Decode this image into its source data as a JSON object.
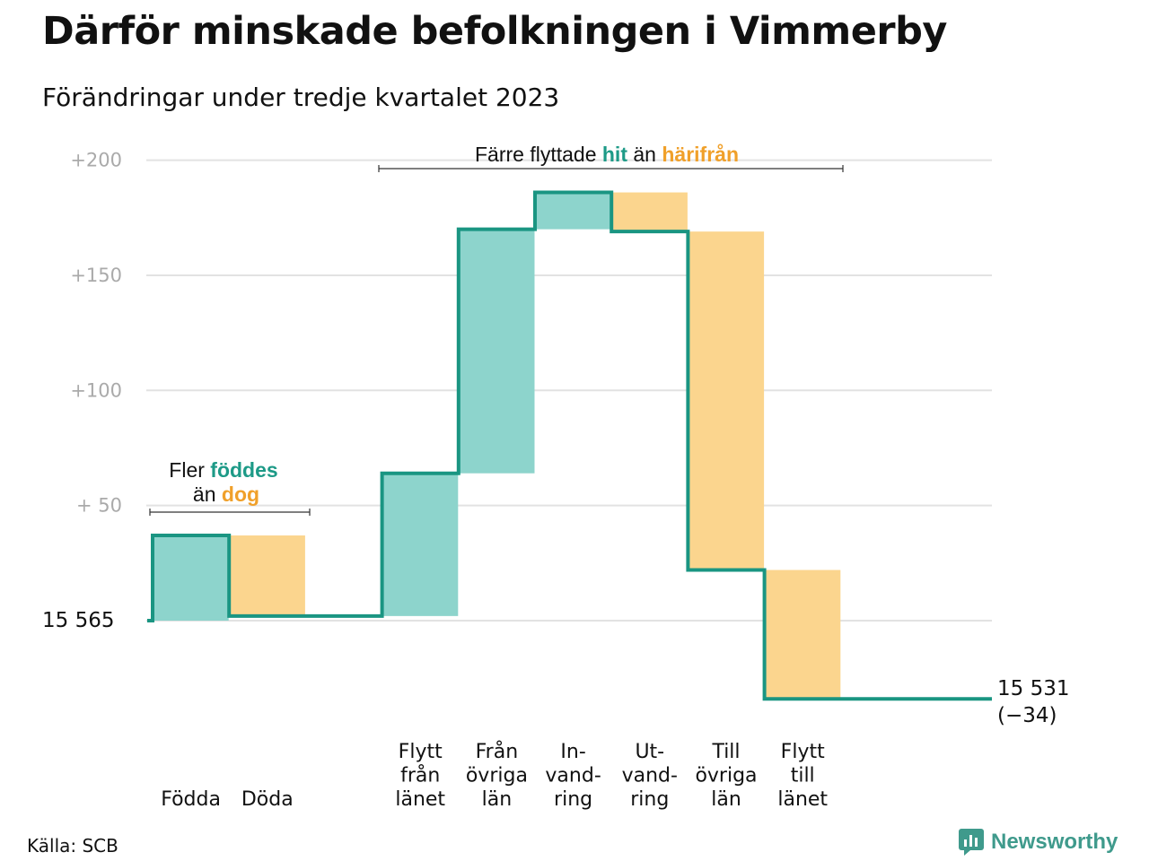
{
  "title": "Därför minskade befolkningen i Vimmerby",
  "subtitle": "Förändringar under tredje kvartalet 2023",
  "source": "Källa: SCB",
  "logo_text": "Newsworthy",
  "colors": {
    "positive": "#8dd4cc",
    "negative": "#fbd58e",
    "line": "#1a9582",
    "accent_green": "#1d9a87",
    "accent_orange": "#f0a02a",
    "grid": "#e2e2e2"
  },
  "annotations": {
    "births": {
      "line1_prefix": "Fler ",
      "line1_highlight": "föddes",
      "line2_prefix": "än ",
      "line2_highlight": "dog"
    },
    "migration": {
      "prefix": "Färre flyttade ",
      "highlight1": "hit",
      "middle": " än ",
      "highlight2": "härifrån"
    }
  },
  "chart_data": {
    "type": "waterfall",
    "title": "Därför minskade befolkningen i Vimmerby",
    "subtitle": "Förändringar under tredje kvartalet 2023",
    "start_value": 15565,
    "start_label": "15  565",
    "end_value": 15531,
    "end_label": "15 531",
    "end_change_label": "(−34)",
    "ylim": [
      -35,
      200
    ],
    "yticks": [
      {
        "value": 200,
        "label": "+200"
      },
      {
        "value": 150,
        "label": "+150"
      },
      {
        "value": 100,
        "label": "+100"
      },
      {
        "value": 50,
        "label": "+  50"
      }
    ],
    "grid": true,
    "steps": [
      {
        "label": [
          "",
          "",
          "Födda"
        ],
        "value": 37
      },
      {
        "label": [
          "",
          "",
          "Döda"
        ],
        "value": -35
      },
      {
        "label": [
          "",
          "",
          ""
        ],
        "value": 0
      },
      {
        "label": [
          "Flytt",
          "från",
          "länet"
        ],
        "value": 62
      },
      {
        "label": [
          "Från",
          "övriga",
          "län"
        ],
        "value": 106
      },
      {
        "label": [
          "In-",
          "vand-",
          "ring"
        ],
        "value": 16
      },
      {
        "label": [
          "Ut-",
          "vand-",
          "ring"
        ],
        "value": -17
      },
      {
        "label": [
          "Till",
          "övriga",
          "län"
        ],
        "value": -147
      },
      {
        "label": [
          "Flytt",
          "till",
          "länet"
        ],
        "value": -56
      },
      {
        "label": [
          "",
          "",
          ""
        ],
        "value": 0
      }
    ]
  }
}
